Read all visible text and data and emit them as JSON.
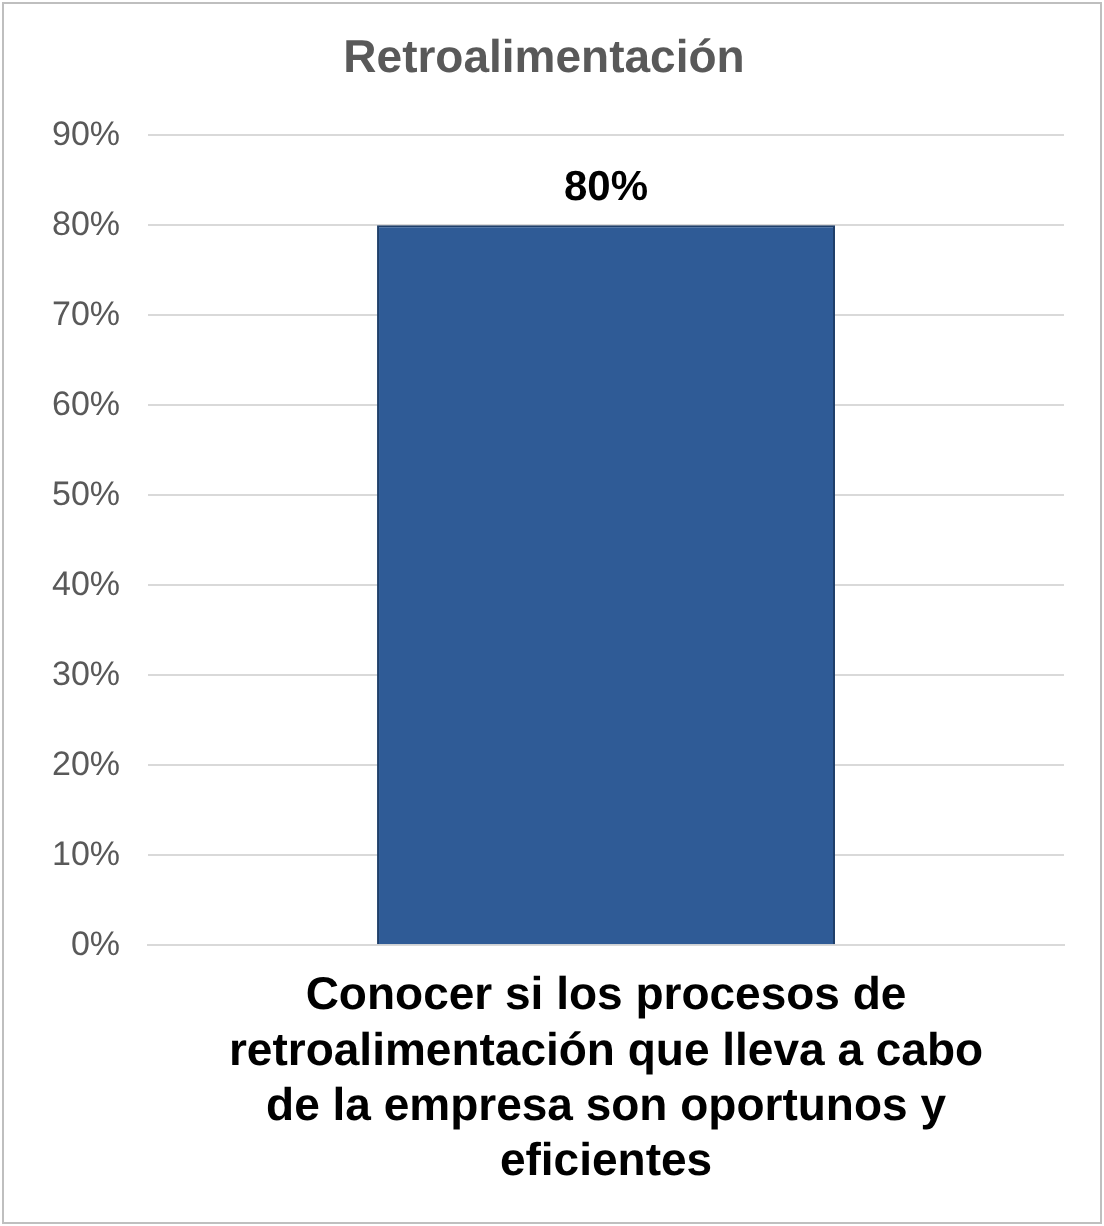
{
  "chart_data": {
    "type": "bar",
    "title": "Retroalimentación",
    "categories": [
      "Conocer si los procesos de retroalimentación que lleva a cabo de la empresa son oportunos y eficientes"
    ],
    "values": [
      80
    ],
    "color": "#2f5b96",
    "value_labels": [
      "80%"
    ],
    "ylim": [
      0,
      90
    ],
    "yticks": [
      {
        "value": 0,
        "label": "0%"
      },
      {
        "value": 10,
        "label": "10%"
      },
      {
        "value": 20,
        "label": "20%"
      },
      {
        "value": 30,
        "label": "30%"
      },
      {
        "value": 40,
        "label": "40%"
      },
      {
        "value": 50,
        "label": "50%"
      },
      {
        "value": 60,
        "label": "60%"
      },
      {
        "value": 70,
        "label": "70%"
      },
      {
        "value": 80,
        "label": "80%"
      },
      {
        "value": 90,
        "label": "90%"
      }
    ],
    "grid": "y",
    "legend": false
  }
}
